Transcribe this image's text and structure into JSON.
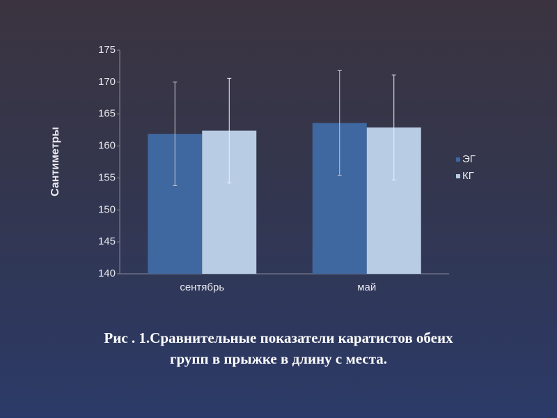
{
  "chart_data": {
    "type": "bar",
    "y_label": "Сантиметры",
    "categories": [
      "сентябрь",
      "май"
    ],
    "series": [
      {
        "name": "ЭГ",
        "color": "#3f67a0",
        "values": [
          161.9,
          163.6
        ],
        "errors": [
          8.1,
          8.2
        ]
      },
      {
        "name": "КГ",
        "color": "#b8cce4",
        "values": [
          162.4,
          162.9
        ],
        "errors": [
          8.2,
          8.2
        ]
      }
    ],
    "ylim": [
      140,
      175
    ],
    "yticks": [
      140,
      145,
      150,
      155,
      160,
      165,
      170,
      175
    ],
    "legend": "right",
    "caption": [
      "Рис . 1.Сравнительные показатели каратистов обеих",
      "групп  в прыжке в длину с места."
    ]
  }
}
